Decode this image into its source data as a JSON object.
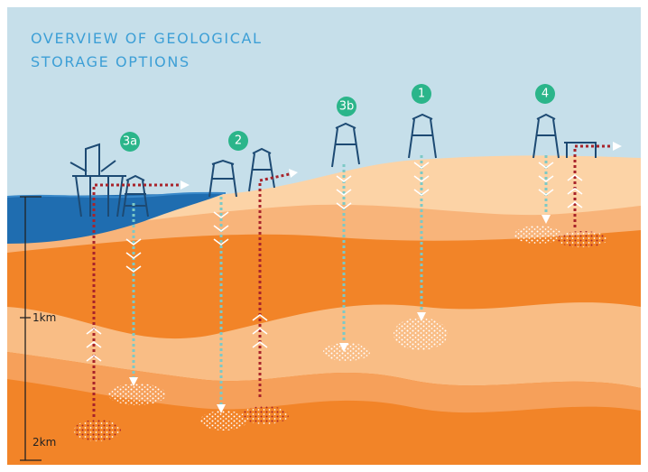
{
  "title": [
    "OVERVIEW OF GEOLOGICAL",
    "STORAGE OPTIONS"
  ],
  "markers": [
    {
      "label": "3a"
    },
    {
      "label": "2"
    },
    {
      "label": "3b"
    },
    {
      "label": "1"
    },
    {
      "label": "4"
    }
  ],
  "scale": {
    "labels": [
      "1km",
      "2km"
    ]
  }
}
